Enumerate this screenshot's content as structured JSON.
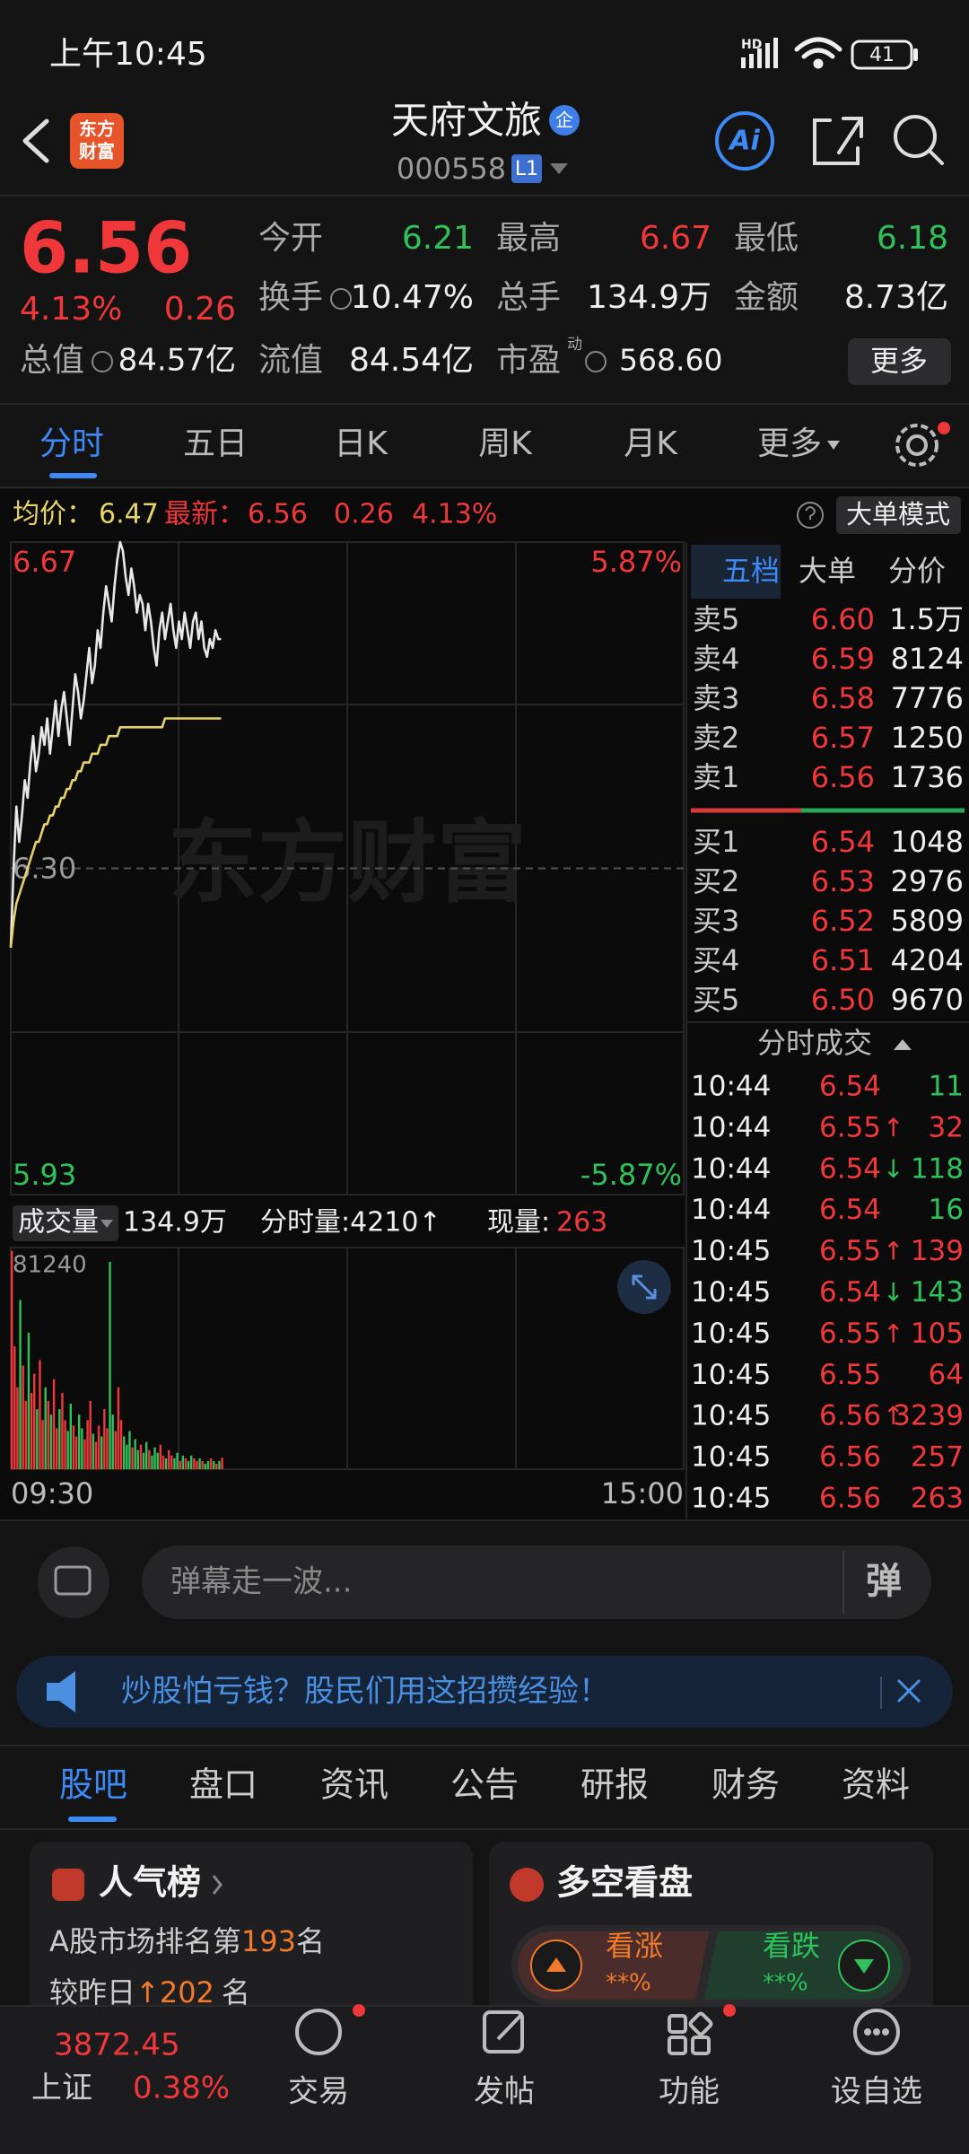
{
  "status": {
    "time": "上午10:45",
    "network": "HD",
    "battery": "41"
  },
  "header": {
    "logo": [
      "东方",
      "财富"
    ],
    "name": "天府文旅",
    "badge": "企",
    "code": "000558",
    "level": "L1",
    "ai": "Ai"
  },
  "quote": {
    "price": "6.56",
    "pct": "4.13%",
    "change": "0.26",
    "open_label": "今开",
    "open": "6.21",
    "high_label": "最高",
    "high": "6.67",
    "low_label": "最低",
    "low": "6.18",
    "turnover_label": "换手",
    "turnover": "10.47%",
    "volume_label": "总手",
    "volume": "134.9万",
    "amount_label": "金额",
    "amount": "8.73亿",
    "cap_label": "总值",
    "cap": "84.57亿",
    "float_label": "流值",
    "float": "84.54亿",
    "pe_label": "市盈",
    "pe_tag": "动",
    "pe": "568.60",
    "more": "更多"
  },
  "tabs": [
    "分时",
    "五日",
    "日K",
    "周K",
    "月K",
    "更多"
  ],
  "info": {
    "avg_label": "均价：",
    "avg": "6.47",
    "last_label": "最新：",
    "last": "6.56",
    "change": "0.26",
    "pct": "4.13%",
    "mode": "大单模式"
  },
  "volume_bar": {
    "label": "成交量",
    "total": "134.9万",
    "minute": "分时量:4210↑",
    "current_label": "现量:",
    "current": "263"
  },
  "chart_data": [
    {
      "type": "line",
      "ylim": [
        5.93,
        6.67
      ],
      "yticks": [
        5.93,
        {
          "value": 6.3,
          "label": "6.30"
        },
        6.67
      ],
      "y2lim": [
        -5.87,
        5.87
      ],
      "y2ticks": [
        {
          "value": -5.87,
          "label": "-5.87%"
        },
        {
          "value": 5.87,
          "label": "5.87%"
        }
      ],
      "watermark": "东方财富",
      "series": [
        {
          "color": "#e8e8e8",
          "values": [
            6.21,
            6.3,
            6.37,
            6.33,
            6.36,
            6.4,
            6.38,
            6.42,
            6.45,
            6.41,
            6.43,
            6.46,
            6.44,
            6.47,
            6.43,
            6.46,
            6.49,
            6.45,
            6.48,
            6.5,
            6.47,
            6.44,
            6.48,
            6.52,
            6.5,
            6.47,
            6.49,
            6.52,
            6.55,
            6.51,
            6.53,
            6.57,
            6.55,
            6.59,
            6.62,
            6.6,
            6.58,
            6.62,
            6.65,
            6.67,
            6.66,
            6.63,
            6.61,
            6.64,
            6.62,
            6.59,
            6.61,
            6.6,
            6.57,
            6.6,
            6.58,
            6.55,
            6.53,
            6.57,
            6.59,
            6.56,
            6.58,
            6.6,
            6.57,
            6.55,
            6.58,
            6.56,
            6.59,
            6.57,
            6.55,
            6.58,
            6.59,
            6.56,
            6.58,
            6.55,
            6.54,
            6.56,
            6.55,
            6.57,
            6.56,
            6.56
          ]
        },
        {
          "color": "#e6d36a",
          "values": [
            6.21,
            6.24,
            6.26,
            6.27,
            6.28,
            6.29,
            6.3,
            6.31,
            6.32,
            6.33,
            6.33,
            6.34,
            6.35,
            6.35,
            6.36,
            6.36,
            6.37,
            6.37,
            6.38,
            6.38,
            6.39,
            6.39,
            6.4,
            6.4,
            6.41,
            6.41,
            6.42,
            6.42,
            6.42,
            6.43,
            6.43,
            6.43,
            6.44,
            6.44,
            6.44,
            6.45,
            6.45,
            6.45,
            6.45,
            6.46,
            6.46,
            6.46,
            6.46,
            6.46,
            6.46,
            6.46,
            6.46,
            6.46,
            6.46,
            6.46,
            6.46,
            6.46,
            6.46,
            6.46,
            6.46,
            6.47,
            6.47,
            6.47,
            6.47,
            6.47,
            6.47,
            6.47,
            6.47,
            6.47,
            6.47,
            6.47,
            6.47,
            6.47,
            6.47,
            6.47,
            6.47,
            6.47,
            6.47,
            6.47,
            6.47,
            6.47
          ]
        }
      ]
    },
    {
      "type": "bar",
      "ylim": [
        0,
        81240
      ],
      "yticks": [
        81240
      ],
      "xticks": [
        "09:30",
        "15:00"
      ],
      "up_color": "#f0383b",
      "down_color": "#2fc25b",
      "values": [
        80000,
        45000,
        30000,
        62000,
        38000,
        25000,
        50000,
        28000,
        35000,
        22000,
        40000,
        18000,
        30000,
        25000,
        20000,
        33000,
        15000,
        22000,
        28000,
        18000,
        14000,
        24000,
        16000,
        12000,
        20000,
        15000,
        11000,
        18000,
        25000,
        13000,
        10000,
        16000,
        12000,
        22000,
        15000,
        76000,
        20000,
        14000,
        30000,
        18000,
        12000,
        9000,
        14000,
        8000,
        11000,
        7000,
        9000,
        6000,
        10000,
        7000,
        5000,
        8000,
        6000,
        9000,
        5000,
        4000,
        7000,
        5000,
        4000,
        6000,
        3000,
        5000,
        4000,
        3000,
        5000,
        4000,
        3000,
        4000,
        3000,
        2000,
        3000,
        4000,
        3000,
        2000,
        3000,
        4210
      ]
    }
  ],
  "order_book": {
    "tabs": [
      "五档",
      "大单",
      "分价"
    ],
    "asks": [
      {
        "side": "卖5",
        "price": "6.60",
        "volume": "1.5万"
      },
      {
        "side": "卖4",
        "price": "6.59",
        "volume": "8124"
      },
      {
        "side": "卖3",
        "price": "6.58",
        "volume": "7776"
      },
      {
        "side": "卖2",
        "price": "6.57",
        "volume": "1250"
      },
      {
        "side": "卖1",
        "price": "6.56",
        "volume": "1736"
      }
    ],
    "bids": [
      {
        "side": "买1",
        "price": "6.54",
        "volume": "1048"
      },
      {
        "side": "买2",
        "price": "6.53",
        "volume": "2976"
      },
      {
        "side": "买3",
        "price": "6.52",
        "volume": "5809"
      },
      {
        "side": "买4",
        "price": "6.51",
        "volume": "4204"
      },
      {
        "side": "买5",
        "price": "6.50",
        "volume": "9670"
      }
    ],
    "trades_title": "分时成交",
    "trades": [
      {
        "time": "10:44",
        "price": "6.54",
        "volume": "11",
        "color": "#2fc25b"
      },
      {
        "time": "10:44",
        "price": "6.55",
        "arrow": "↑",
        "volume": "32",
        "color": "#f0383b"
      },
      {
        "time": "10:44",
        "price": "6.54",
        "arrow": "↓",
        "volume": "118",
        "color": "#2fc25b"
      },
      {
        "time": "10:44",
        "price": "6.54",
        "volume": "16",
        "color": "#2fc25b"
      },
      {
        "time": "10:45",
        "price": "6.55",
        "arrow": "↑",
        "volume": "139",
        "color": "#f0383b"
      },
      {
        "time": "10:45",
        "price": "6.54",
        "arrow": "↓",
        "volume": "143",
        "color": "#2fc25b"
      },
      {
        "time": "10:45",
        "price": "6.55",
        "arrow": "↑",
        "volume": "105",
        "color": "#f0383b"
      },
      {
        "time": "10:45",
        "price": "6.55",
        "volume": "64",
        "color": "#f0383b"
      },
      {
        "time": "10:45",
        "price": "6.56",
        "arrow": "↑",
        "volume": "3239",
        "color": "#f0383b"
      },
      {
        "time": "10:45",
        "price": "6.56",
        "volume": "257",
        "color": "#f0383b"
      },
      {
        "time": "10:45",
        "price": "6.56",
        "volume": "263",
        "color": "#f0383b"
      }
    ]
  },
  "comment": {
    "placeholder": "弹幕走一波...",
    "button": "弹"
  },
  "banner": {
    "text": "炒股怕亏钱？股民们用这招攒经验！"
  },
  "sections": [
    "股吧",
    "盘口",
    "资讯",
    "公告",
    "研报",
    "财务",
    "资料"
  ],
  "cards": {
    "popularity": {
      "title": "人气榜",
      "rank_prefix": "A股市场排名第",
      "rank": "193",
      "rank_suffix": "名",
      "change_prefix": "较昨日",
      "change_arrow": "↑",
      "change": "202",
      "change_suffix": "名"
    },
    "sentiment": {
      "title": "多空看盘",
      "bull": "看涨",
      "bull_pct": "**%",
      "bear": "看跌",
      "bear_pct": "**%"
    }
  },
  "nav": {
    "index_value": "3872.45",
    "index_name": "上证",
    "index_pct": "0.38%",
    "items": [
      "交易",
      "发帖",
      "功能",
      "设自选"
    ]
  }
}
